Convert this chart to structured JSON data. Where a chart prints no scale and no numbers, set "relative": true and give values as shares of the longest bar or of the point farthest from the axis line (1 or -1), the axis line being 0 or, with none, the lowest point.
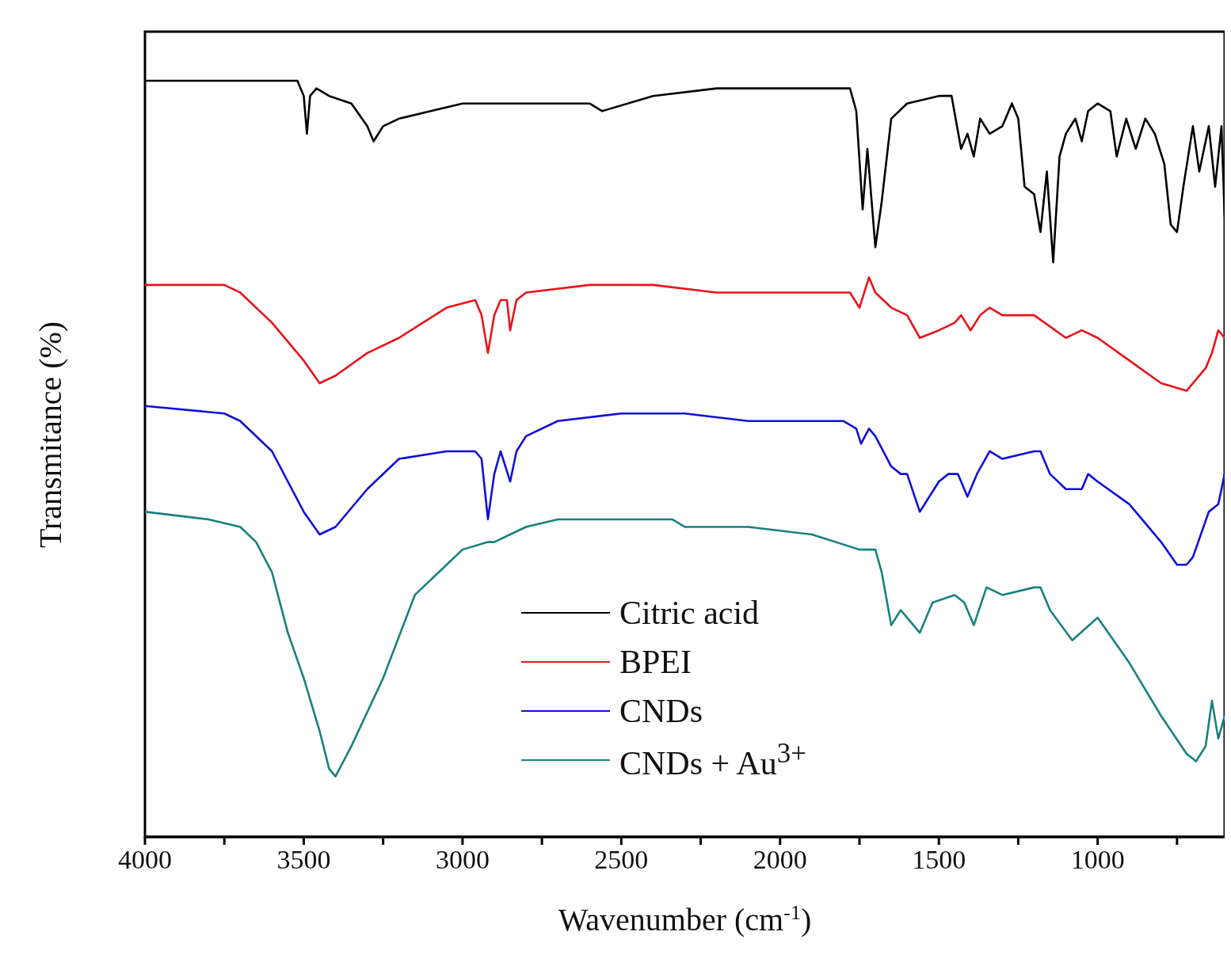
{
  "chart_data": {
    "type": "line",
    "xlabel": "Wavenumber (cm$^{-1}$)",
    "ylabel": "Transmitance (%)",
    "relative": true,
    "xlim": [
      4000,
      600
    ],
    "xticks": [
      4000,
      {
        "value": 3750,
        "label": null
      },
      3500,
      {
        "value": 3250,
        "label": null
      },
      3000,
      {
        "value": 2750,
        "label": null
      },
      2500,
      {
        "value": 2250,
        "label": null
      },
      2000,
      {
        "value": 1750,
        "label": null
      },
      1500,
      {
        "value": 1250,
        "label": null
      },
      1000,
      {
        "value": 750,
        "label": null
      }
    ],
    "legend": "bottom",
    "grid": false,
    "line_style": "solid",
    "marker": "none",
    "series": [
      {
        "name": "Citric acid",
        "color": "#000000",
        "x": [
          4000,
          3600,
          3520,
          3500,
          3490,
          3480,
          3460,
          3420,
          3350,
          3300,
          3280,
          3250,
          3200,
          3100,
          3000,
          2800,
          2700,
          2600,
          2560,
          2400,
          2200,
          2100,
          1900,
          1780,
          1760,
          1740,
          1725,
          1700,
          1680,
          1650,
          1600,
          1500,
          1460,
          1430,
          1410,
          1390,
          1370,
          1340,
          1300,
          1270,
          1250,
          1230,
          1200,
          1180,
          1160,
          1140,
          1120,
          1100,
          1070,
          1050,
          1030,
          1000,
          960,
          940,
          910,
          880,
          850,
          820,
          790,
          770,
          750,
          730,
          700,
          680,
          650,
          630,
          610,
          600
        ],
        "values": [
          1.0,
          1.0,
          1.0,
          0.98,
          0.93,
          0.98,
          0.99,
          0.98,
          0.97,
          0.94,
          0.92,
          0.94,
          0.95,
          0.96,
          0.97,
          0.97,
          0.97,
          0.97,
          0.96,
          0.98,
          0.99,
          0.99,
          0.99,
          0.99,
          0.96,
          0.83,
          0.91,
          0.78,
          0.84,
          0.95,
          0.97,
          0.98,
          0.98,
          0.91,
          0.93,
          0.9,
          0.95,
          0.93,
          0.94,
          0.97,
          0.95,
          0.86,
          0.85,
          0.8,
          0.88,
          0.76,
          0.9,
          0.93,
          0.95,
          0.92,
          0.96,
          0.97,
          0.96,
          0.9,
          0.95,
          0.91,
          0.95,
          0.93,
          0.89,
          0.81,
          0.8,
          0.86,
          0.94,
          0.88,
          0.94,
          0.86,
          0.94,
          0.82
        ]
      },
      {
        "name": "BPEI",
        "color": "#e8141b",
        "x": [
          4000,
          3750,
          3700,
          3600,
          3500,
          3450,
          3400,
          3300,
          3200,
          3050,
          2960,
          2940,
          2920,
          2900,
          2880,
          2860,
          2850,
          2830,
          2800,
          2600,
          2400,
          2200,
          2100,
          1900,
          1780,
          1750,
          1720,
          1700,
          1650,
          1600,
          1560,
          1500,
          1450,
          1430,
          1400,
          1370,
          1340,
          1300,
          1200,
          1100,
          1050,
          1000,
          900,
          800,
          720,
          700,
          660,
          640,
          620,
          600
        ],
        "values": [
          0.73,
          0.73,
          0.72,
          0.68,
          0.63,
          0.6,
          0.61,
          0.64,
          0.66,
          0.7,
          0.71,
          0.69,
          0.64,
          0.69,
          0.71,
          0.71,
          0.67,
          0.71,
          0.72,
          0.73,
          0.73,
          0.72,
          0.72,
          0.72,
          0.72,
          0.7,
          0.74,
          0.72,
          0.7,
          0.69,
          0.66,
          0.67,
          0.68,
          0.69,
          0.67,
          0.69,
          0.7,
          0.69,
          0.69,
          0.66,
          0.67,
          0.66,
          0.63,
          0.6,
          0.59,
          0.6,
          0.62,
          0.64,
          0.67,
          0.66
        ]
      },
      {
        "name": "CNDs",
        "color": "#1010d8",
        "x": [
          4000,
          3750,
          3700,
          3600,
          3500,
          3450,
          3400,
          3300,
          3200,
          3050,
          2960,
          2940,
          2920,
          2900,
          2880,
          2850,
          2830,
          2800,
          2700,
          2500,
          2350,
          2340,
          2300,
          2100,
          1800,
          1760,
          1745,
          1720,
          1700,
          1650,
          1620,
          1600,
          1560,
          1500,
          1470,
          1440,
          1410,
          1380,
          1340,
          1300,
          1200,
          1180,
          1150,
          1100,
          1050,
          1030,
          1000,
          900,
          800,
          750,
          720,
          700,
          650,
          620,
          600
        ],
        "values": [
          0.57,
          0.56,
          0.55,
          0.51,
          0.43,
          0.4,
          0.41,
          0.46,
          0.5,
          0.51,
          0.51,
          0.5,
          0.42,
          0.48,
          0.51,
          0.47,
          0.51,
          0.53,
          0.55,
          0.56,
          0.56,
          0.56,
          0.56,
          0.55,
          0.55,
          0.54,
          0.52,
          0.54,
          0.53,
          0.49,
          0.48,
          0.48,
          0.43,
          0.47,
          0.48,
          0.48,
          0.45,
          0.48,
          0.51,
          0.5,
          0.51,
          0.51,
          0.48,
          0.46,
          0.46,
          0.48,
          0.47,
          0.44,
          0.39,
          0.36,
          0.36,
          0.37,
          0.43,
          0.44,
          0.48
        ]
      },
      {
        "name": "CNDs + Au$^{3+}$",
        "color": "#1a8080",
        "x": [
          4000,
          3800,
          3700,
          3650,
          3600,
          3550,
          3500,
          3450,
          3420,
          3400,
          3350,
          3250,
          3150,
          3050,
          3000,
          2920,
          2900,
          2850,
          2800,
          2700,
          2600,
          2500,
          2400,
          2340,
          2300,
          2100,
          1900,
          1750,
          1700,
          1680,
          1650,
          1620,
          1600,
          1560,
          1520,
          1450,
          1420,
          1390,
          1350,
          1300,
          1200,
          1180,
          1150,
          1080,
          1000,
          900,
          800,
          720,
          690,
          660,
          640,
          620,
          600
        ],
        "values": [
          0.43,
          0.42,
          0.41,
          0.39,
          0.35,
          0.27,
          0.21,
          0.14,
          0.09,
          0.08,
          0.12,
          0.21,
          0.32,
          0.36,
          0.38,
          0.39,
          0.39,
          0.4,
          0.41,
          0.42,
          0.42,
          0.42,
          0.42,
          0.42,
          0.41,
          0.41,
          0.4,
          0.38,
          0.38,
          0.35,
          0.28,
          0.3,
          0.29,
          0.27,
          0.31,
          0.32,
          0.31,
          0.28,
          0.33,
          0.32,
          0.33,
          0.33,
          0.3,
          0.26,
          0.29,
          0.23,
          0.16,
          0.11,
          0.1,
          0.12,
          0.18,
          0.13,
          0.16
        ]
      }
    ]
  }
}
